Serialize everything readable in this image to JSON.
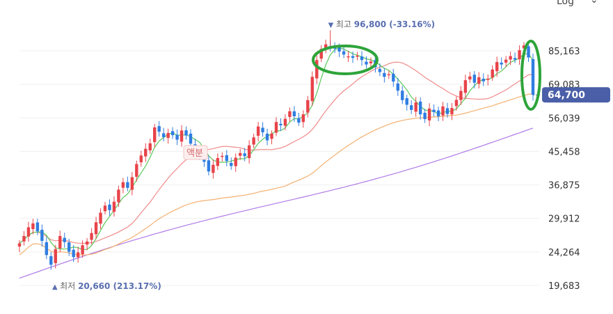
{
  "scale_toggle": {
    "label": "Log",
    "icon": "chevron-down-icon"
  },
  "chart_data": {
    "type": "candlestick",
    "scale": "log",
    "ylim": [
      18500,
      102000
    ],
    "y_ticks": [
      "85,163",
      "69,083",
      "56,039",
      "45,458",
      "36,875",
      "29,912",
      "24,264",
      "19,683"
    ],
    "y_tick_values": [
      85163,
      69083,
      56039,
      45458,
      36875,
      29912,
      24264,
      19683
    ],
    "current_price": {
      "label": "64,700",
      "value": 64700,
      "color": "#4a5fa8"
    },
    "high_annotation": {
      "marker": "▼",
      "label": "최고",
      "value_text": "96,800 (-33.16%)",
      "value": 96800,
      "index": 69
    },
    "low_annotation": {
      "marker": "▲",
      "label": "최저",
      "value_text": "20,660 (213.17%)",
      "value": 20660,
      "index": 7
    },
    "event_label": {
      "text": "액분",
      "index": 35
    },
    "up_color": "#e8434a",
    "down_color": "#2f7de1",
    "ma_colors": {
      "ma5": "#5ac85a",
      "ma20": "#f08a8a",
      "ma60": "#f4b070",
      "ma120": "#b07ae8"
    },
    "highlight_color": "#2ea43a",
    "candles_close": [
      25600,
      26800,
      28300,
      29000,
      27600,
      26000,
      23800,
      22400,
      24700,
      26800,
      25800,
      24300,
      23500,
      24200,
      25300,
      25900,
      27300,
      29200,
      31000,
      32400,
      31500,
      33200,
      35800,
      37500,
      36200,
      38700,
      42000,
      44300,
      46200,
      47800,
      52800,
      51400,
      49700,
      51000,
      50300,
      48900,
      51800,
      50200,
      47700,
      46300,
      44500,
      42600,
      40100,
      41800,
      43600,
      44200,
      42800,
      41500,
      43700,
      45000,
      44100,
      47200,
      49600,
      53100,
      51200,
      48700,
      50800,
      54600,
      53500,
      55700,
      58400,
      56600,
      54400,
      57300,
      62600,
      72400,
      80400,
      86200,
      88700,
      87500,
      86300,
      84800,
      83200,
      82300,
      81500,
      82600,
      80400,
      78200,
      79700,
      76800,
      74600,
      72400,
      73600,
      70300,
      66400,
      62600,
      60800,
      58900,
      61700,
      57300,
      55600,
      59400,
      58100,
      56600,
      60200,
      57400,
      59600,
      62700,
      66300,
      70900,
      72600,
      69800,
      72200,
      70400,
      71600,
      75800,
      79400,
      78200,
      80600,
      82400,
      80600,
      85500,
      88100,
      81700,
      64700
    ]
  }
}
